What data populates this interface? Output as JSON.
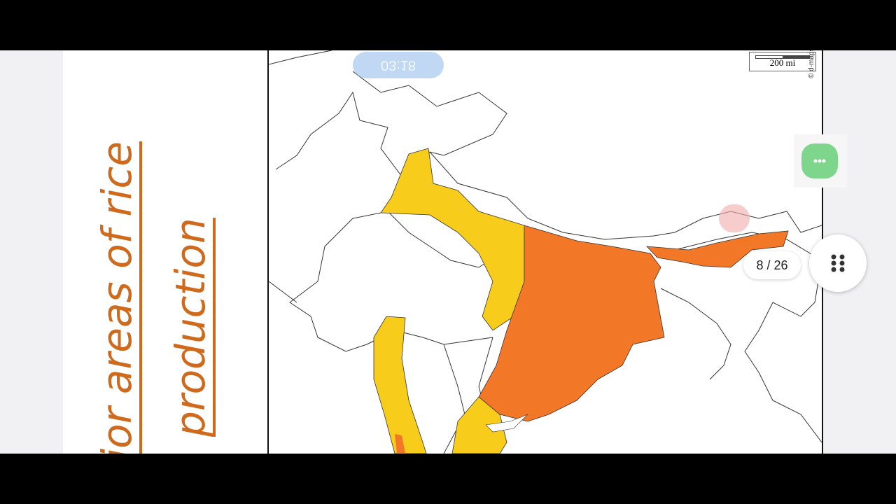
{
  "slide": {
    "title_line1": "jor areas of rice",
    "title_line2": "production"
  },
  "map": {
    "scale_label": "200 mi",
    "credit": "© d-maps"
  },
  "overlay": {
    "timer": "03:18",
    "pager": "8 / 26"
  }
}
